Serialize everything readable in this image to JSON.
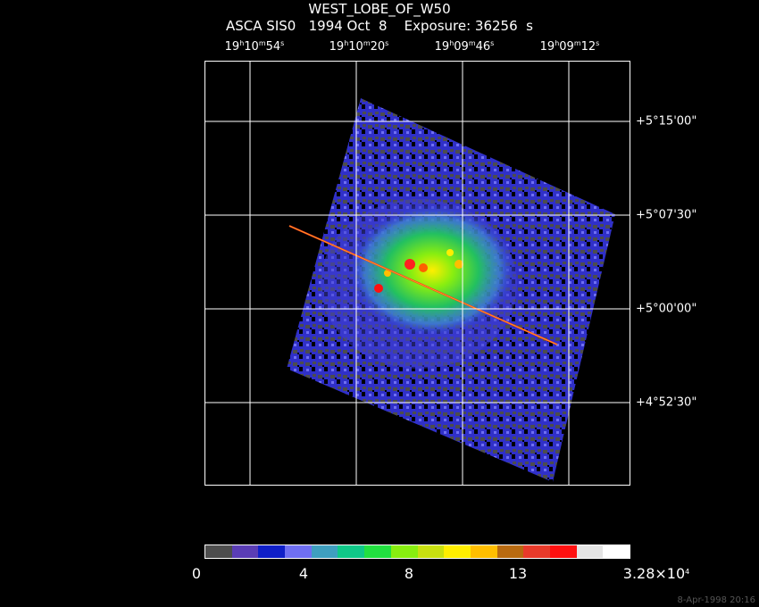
{
  "title": "WEST_LOBE_OF_W50",
  "subtitle": "ASCA SIS0   1994 Oct  8    Exposure: 36256  s",
  "ra_labels": [
    {
      "h": "19",
      "m": "10",
      "s": "54"
    },
    {
      "h": "19",
      "m": "10",
      "s": "20"
    },
    {
      "h": "19",
      "m": "09",
      "s": "46"
    },
    {
      "h": "19",
      "m": "09",
      "s": "12"
    }
  ],
  "dec_labels": [
    "+5°15'00\"",
    "+5°07'30\"",
    "+5°00'00\"",
    "+4°52'30\""
  ],
  "colorbar": {
    "colors": [
      "#4d4d4d",
      "#5a3db5",
      "#0f1fc8",
      "#6f6ff2",
      "#3f9fbf",
      "#10c888",
      "#22e040",
      "#88ee10",
      "#c8e010",
      "#ffee00",
      "#ffbe00",
      "#b86a10",
      "#e83a2a",
      "#ff1010",
      "#e4e4e4",
      "#ffffff"
    ],
    "labels": [
      "0",
      "4",
      "8",
      "13"
    ],
    "max_label": "3.28×10",
    "max_exp": "4"
  },
  "timestamp": "8-Apr-1998 20:16"
}
